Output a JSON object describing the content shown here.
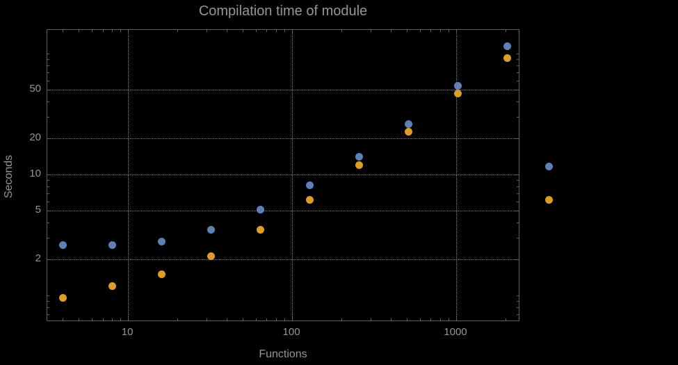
{
  "palette": {
    "bg": "#000000",
    "frame": "#606060",
    "grid": "#848484",
    "text": "#969696",
    "s1": "#5e81b5",
    "s2": "#e19c24"
  },
  "chart_data": {
    "type": "scatter",
    "title": "Compilation time of module",
    "xlabel": "Functions",
    "ylabel": "Seconds",
    "xscale": "log",
    "yscale": "log",
    "xlim": [
      3.22,
      2455
    ],
    "ylim": [
      0.605,
      157
    ],
    "x_ticks": [
      10,
      100,
      1000
    ],
    "y_ticks": [
      2,
      5,
      10,
      20,
      50
    ],
    "grid": "dotted",
    "x": [
      4,
      8,
      16,
      32,
      64,
      128,
      256,
      512,
      1024,
      2048
    ],
    "series": [
      {
        "name": "series-1-blue",
        "color": "#5e81b5",
        "y": [
          2.6,
          2.6,
          2.8,
          3.5,
          5.1,
          8.2,
          14,
          26,
          54,
          115
        ]
      },
      {
        "name": "series-2-orange",
        "color": "#e19c24",
        "y": [
          0.96,
          1.2,
          1.5,
          2.1,
          3.5,
          6.2,
          12,
          22.5,
          47,
          92
        ]
      }
    ],
    "legend": {
      "position": "right-of-frame",
      "labels_visible": false,
      "markers": [
        {
          "color": "#5e81b5"
        },
        {
          "color": "#e19c24"
        }
      ]
    }
  }
}
